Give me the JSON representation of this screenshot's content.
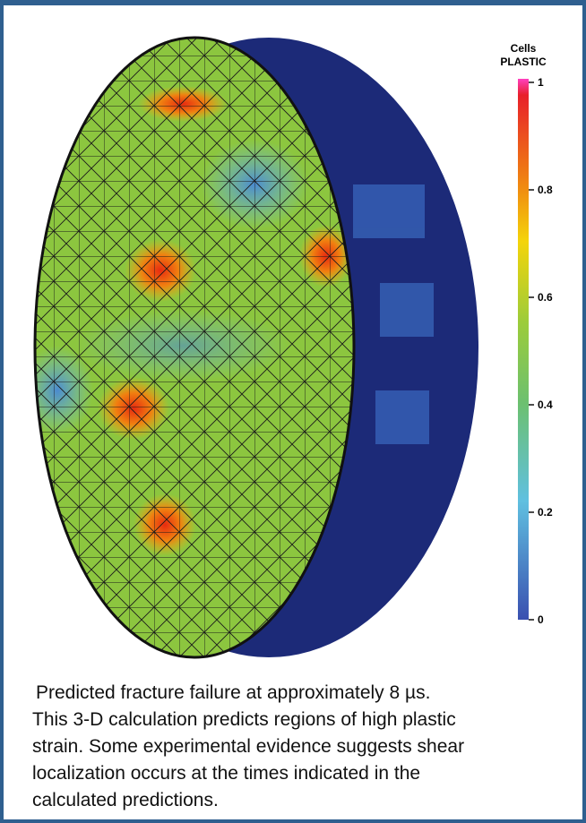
{
  "colorbar": {
    "title_line1": "Cells",
    "title_line2": "PLASTIC",
    "range": [
      0,
      1
    ],
    "ticks": [
      1,
      0.8,
      0.6,
      0.4,
      0.2,
      0
    ]
  },
  "caption": {
    "lines": [
      "Predicted fracture failure at approximately 8 µs.",
      "This 3-D calculation predicts regions of high plastic",
      "strain. Some experimental evidence suggests shear",
      "localization occurs at the times indicated in the",
      "calculated predictions."
    ]
  }
}
